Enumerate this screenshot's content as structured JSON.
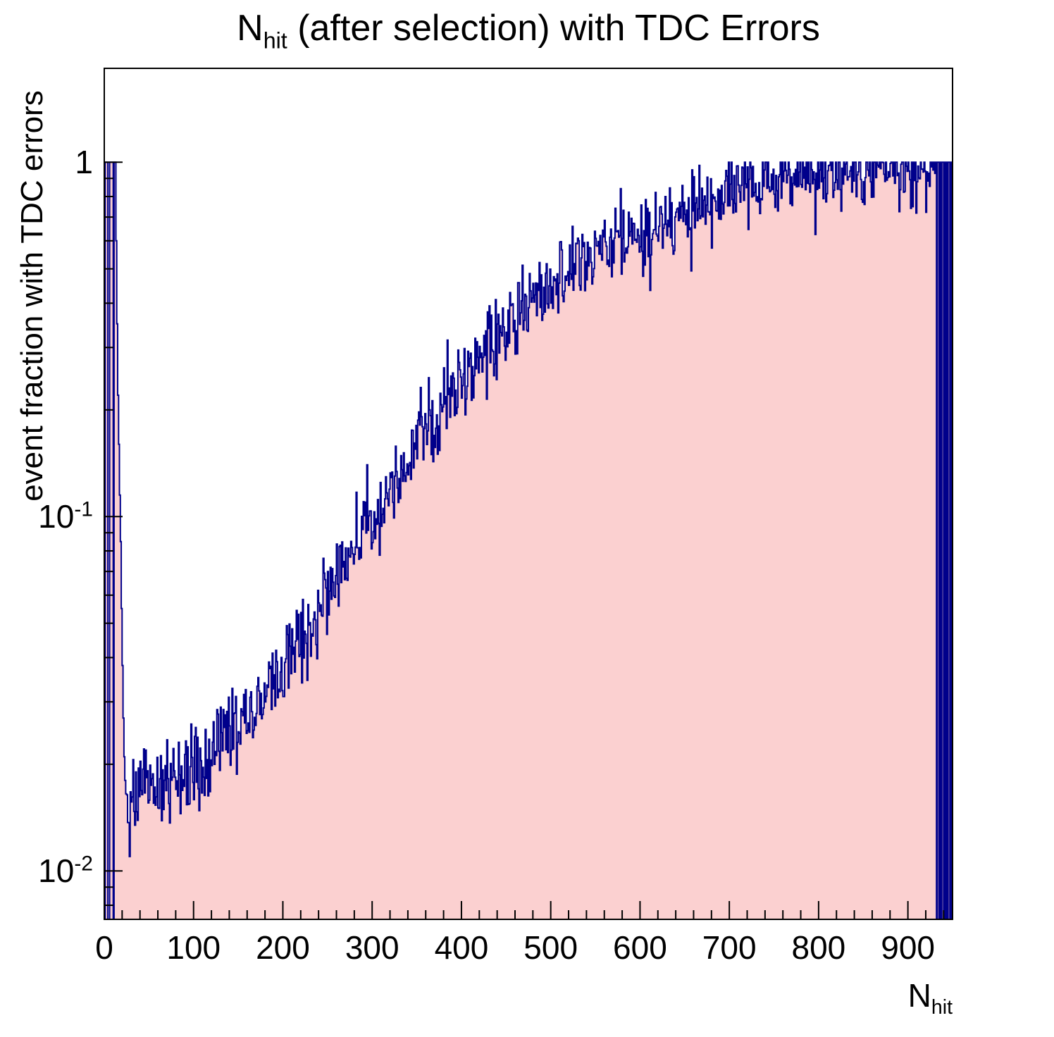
{
  "title": {
    "prefix": "N",
    "subscript": "hit",
    "suffix": " (after selection) with TDC Errors"
  },
  "axes": {
    "x": {
      "title_prefix": "N",
      "title_subscript": "hit",
      "min": 0,
      "max": 950,
      "major_ticks": [
        0,
        100,
        200,
        300,
        400,
        500,
        600,
        700,
        800,
        900
      ],
      "tick_labels": [
        "0",
        "100",
        "200",
        "300",
        "400",
        "500",
        "600",
        "700",
        "800",
        "900"
      ],
      "minor_step": 20
    },
    "y": {
      "title": "event fraction with TDC errors",
      "scale": "log",
      "min": 0.0073,
      "max": 1.84,
      "major_ticks": [
        {
          "v": 1,
          "mant": "1",
          "exp": ""
        },
        {
          "v": 0.1,
          "mant": "10",
          "exp": "-1"
        },
        {
          "v": 0.01,
          "mant": "10",
          "exp": "-2"
        }
      ]
    }
  },
  "style": {
    "fill_color": "#fbd0d0",
    "line_color": "#00008b",
    "frame_color": "#000000",
    "background": "#ffffff"
  },
  "chart_data": {
    "type": "bar",
    "style": "filled-step-histogram",
    "title": "N_hit (after selection) with TDC Errors",
    "xlabel": "N_hit",
    "ylabel": "event fraction with TDC errors",
    "xlim": [
      0,
      950
    ],
    "ylim_log": [
      0.0073,
      1.84
    ],
    "grid": false,
    "legend": false,
    "bin_width": 1,
    "value_cap": 1.0,
    "seed": 424242,
    "noise_sigma_log10": 0.06,
    "prefix_bins": {
      "start_x": 0,
      "values": [
        0,
        1,
        1,
        1,
        0,
        0,
        1,
        1,
        1,
        1,
        0,
        1,
        1,
        0.6,
        0.35,
        0.22,
        0.16,
        0.115,
        0.085,
        0.055,
        0.038,
        0.027,
        0.021,
        0.018,
        0.0165
      ]
    },
    "suffix_bins": {
      "start_x": 926,
      "values": [
        0.97,
        1,
        0.95,
        1,
        0.93,
        1,
        0,
        1,
        1,
        0,
        1,
        0,
        1,
        1,
        0,
        1,
        0,
        1,
        0,
        1,
        1,
        0,
        1,
        0
      ]
    },
    "trend_anchors": [
      [
        25,
        0.016
      ],
      [
        40,
        0.0165
      ],
      [
        60,
        0.017
      ],
      [
        80,
        0.018
      ],
      [
        100,
        0.0195
      ],
      [
        120,
        0.021
      ],
      [
        140,
        0.024
      ],
      [
        160,
        0.027
      ],
      [
        180,
        0.031
      ],
      [
        200,
        0.037
      ],
      [
        220,
        0.044
      ],
      [
        240,
        0.053
      ],
      [
        260,
        0.065
      ],
      [
        280,
        0.082
      ],
      [
        300,
        0.1
      ],
      [
        320,
        0.12
      ],
      [
        340,
        0.145
      ],
      [
        360,
        0.175
      ],
      [
        380,
        0.21
      ],
      [
        400,
        0.25
      ],
      [
        420,
        0.285
      ],
      [
        440,
        0.32
      ],
      [
        460,
        0.36
      ],
      [
        480,
        0.41
      ],
      [
        500,
        0.46
      ],
      [
        520,
        0.5
      ],
      [
        540,
        0.54
      ],
      [
        560,
        0.575
      ],
      [
        580,
        0.6
      ],
      [
        600,
        0.625
      ],
      [
        620,
        0.66
      ],
      [
        640,
        0.7
      ],
      [
        660,
        0.735
      ],
      [
        680,
        0.77
      ],
      [
        700,
        0.8
      ],
      [
        720,
        0.835
      ],
      [
        740,
        0.87
      ],
      [
        760,
        0.9
      ],
      [
        780,
        0.93
      ],
      [
        800,
        0.95
      ],
      [
        820,
        0.96
      ],
      [
        840,
        0.965
      ],
      [
        860,
        0.965
      ],
      [
        880,
        0.965
      ],
      [
        900,
        0.96
      ],
      [
        910,
        0.95
      ],
      [
        926,
        0.95
      ]
    ]
  }
}
